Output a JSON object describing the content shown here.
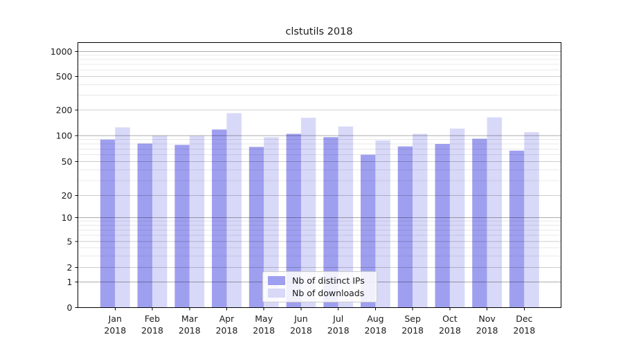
{
  "chart_data": {
    "type": "bar",
    "title": "clstutils 2018",
    "categories": [
      "Jan",
      "Feb",
      "Mar",
      "Apr",
      "May",
      "Jun",
      "Jul",
      "Aug",
      "Sep",
      "Oct",
      "Nov",
      "Dec"
    ],
    "category_year": "2018",
    "series": [
      {
        "name": "Nb of distinct IPs",
        "color": "#9f9ff0",
        "values": [
          90,
          81,
          78,
          118,
          74,
          105,
          96,
          60,
          75,
          80,
          92,
          67
        ]
      },
      {
        "name": "Nb of downloads",
        "color": "#d8d8f8",
        "values": [
          125,
          100,
          99,
          184,
          96,
          162,
          128,
          88,
          105,
          121,
          164,
          110
        ]
      }
    ],
    "yscale": "symlog",
    "yticks": [
      0,
      1,
      2,
      5,
      10,
      20,
      50,
      100,
      200,
      500,
      1000
    ],
    "ylim": [
      0,
      1280
    ],
    "xlabel": "",
    "ylabel": "",
    "grid": true,
    "legend_position": "lower center",
    "colors": {
      "axis": "#000000",
      "grid_major_pow10": "#a8a8a8",
      "grid_major_sub": "#c9c9c9",
      "grid_minor": "#e8e8e8",
      "background": "#ffffff",
      "text": "#1a1a1a"
    }
  }
}
